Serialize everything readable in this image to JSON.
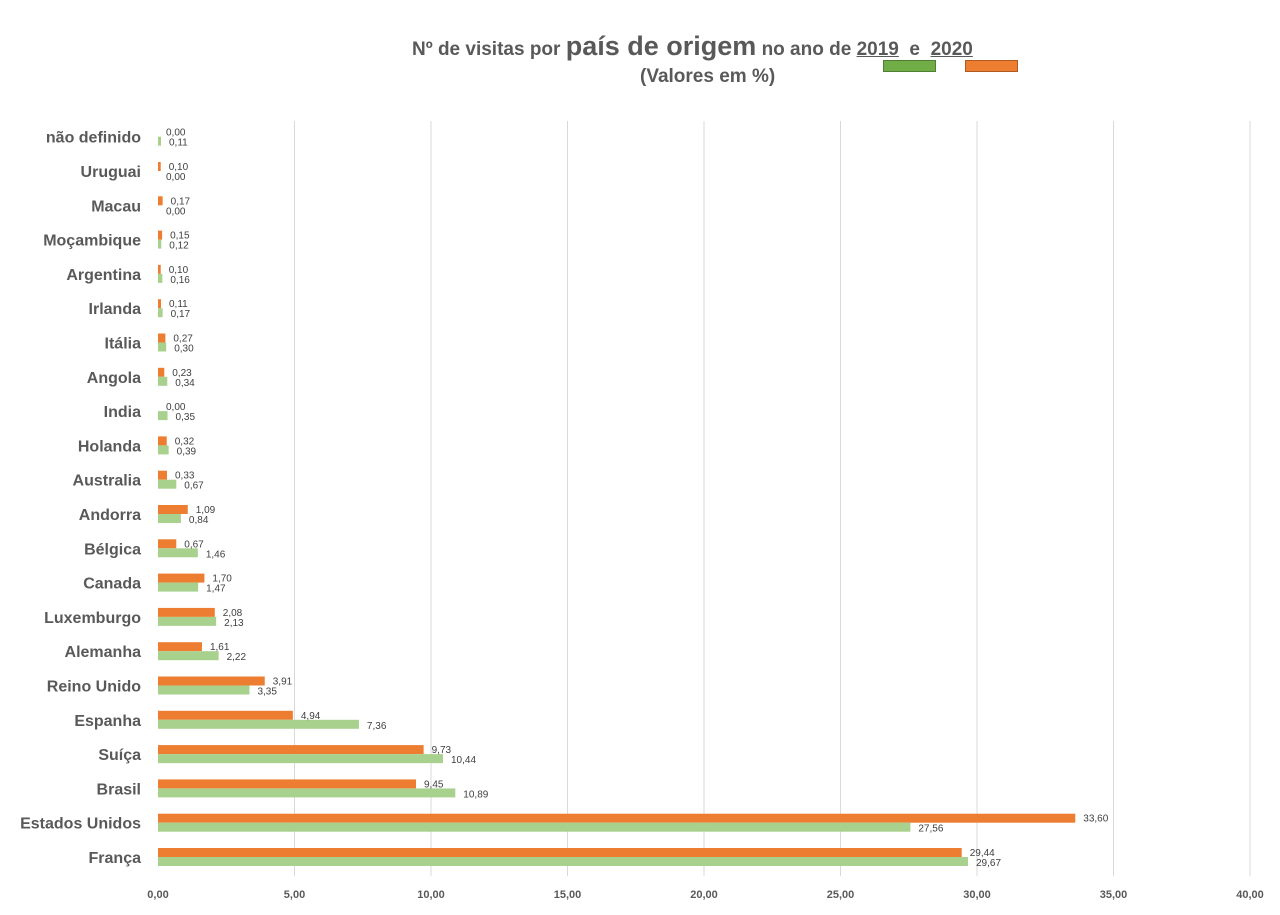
{
  "title": {
    "prefix": "Nº de visitas por",
    "emphasis": "país de origem",
    "middle": "no ano de",
    "year1": "2019",
    "joiner": "e",
    "year2": "2020",
    "subtitle": "(Valores em %)"
  },
  "colors": {
    "series_2019": "#a9d18e",
    "series_2019_legend": "#70ad47",
    "series_2020": "#ed7d31",
    "grid": "#d9d9d9",
    "text": "#595959"
  },
  "chart_data": {
    "type": "bar",
    "orientation": "horizontal",
    "categories": [
      "França",
      "Estados Unidos",
      "Brasil",
      "Suíça",
      "Espanha",
      "Reino Unido",
      "Alemanha",
      "Luxemburgo",
      "Canada",
      "Bélgica",
      "Andorra",
      "Australia",
      "Holanda",
      "India",
      "Angola",
      "Itália",
      "Irlanda",
      "Argentina",
      "Moçambique",
      "Macau",
      "Uruguai",
      "não definido"
    ],
    "series": [
      {
        "name": "2019",
        "color": "#a9d18e",
        "values": [
          29.67,
          27.56,
          10.89,
          10.44,
          7.36,
          3.35,
          2.22,
          2.13,
          1.47,
          1.46,
          0.84,
          0.67,
          0.39,
          0.35,
          0.34,
          0.3,
          0.17,
          0.16,
          0.12,
          0.0,
          0.0,
          0.11
        ],
        "labels": [
          "29,67",
          "27,56",
          "10,89",
          "10,44",
          "7,36",
          "3,35",
          "2,22",
          "2,13",
          "1,47",
          "1,46",
          "0,84",
          "0,67",
          "0,39",
          "0,35",
          "0,34",
          "0,30",
          "0,17",
          "0,16",
          "0,12",
          "0,00",
          "0,00",
          "0,11"
        ]
      },
      {
        "name": "2020",
        "color": "#ed7d31",
        "values": [
          29.44,
          33.6,
          9.45,
          9.73,
          4.94,
          3.91,
          1.61,
          2.08,
          1.7,
          0.67,
          1.09,
          0.33,
          0.32,
          0.0,
          0.23,
          0.27,
          0.11,
          0.1,
          0.15,
          0.17,
          0.1,
          0.0
        ],
        "labels": [
          "29,44",
          "33,60",
          "9,45",
          "9,73",
          "4,94",
          "3,91",
          "1,61",
          "2,08",
          "1,70",
          "0,67",
          "1,09",
          "0,33",
          "0,32",
          "0,00",
          "0,23",
          "0,27",
          "0,11",
          "0,10",
          "0,15",
          "0,17",
          "0,10",
          "0,00"
        ]
      }
    ],
    "xlim": [
      0,
      40
    ],
    "xticks": [
      0,
      5,
      10,
      15,
      20,
      25,
      30,
      35,
      40
    ],
    "xtick_labels": [
      "0,00",
      "5,00",
      "10,00",
      "15,00",
      "20,00",
      "25,00",
      "30,00",
      "35,00",
      "40,00"
    ],
    "xlabel": "",
    "ylabel": "",
    "grid": "vertical",
    "legend": "in title"
  }
}
